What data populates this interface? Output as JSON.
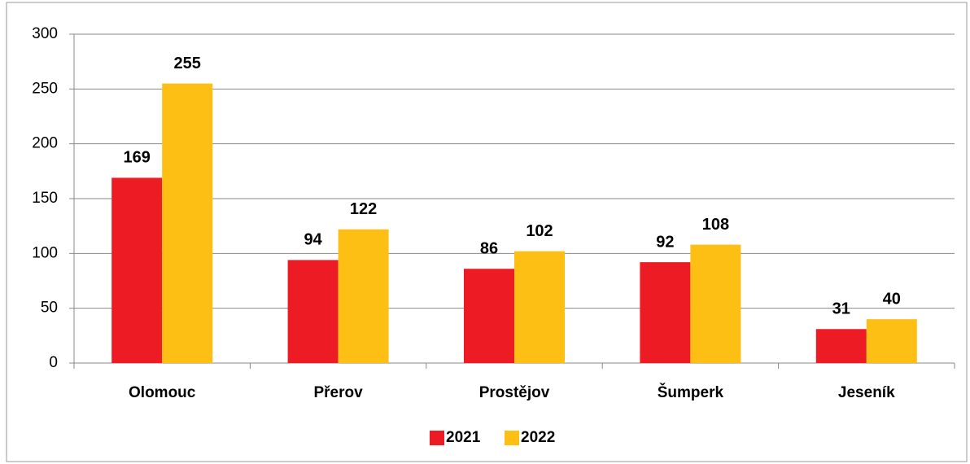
{
  "chart_data": {
    "type": "bar",
    "categories": [
      "Olomouc",
      "Přerov",
      "Prostějov",
      "Šumperk",
      "Jeseník"
    ],
    "series": [
      {
        "name": "2021",
        "color": "#ed1c24",
        "values": [
          169,
          94,
          86,
          92,
          31
        ]
      },
      {
        "name": "2022",
        "color": "#fdbf14",
        "values": [
          255,
          122,
          102,
          108,
          40
        ]
      }
    ],
    "ylim": [
      0,
      300
    ],
    "yticks": [
      0,
      50,
      100,
      150,
      200,
      250,
      300
    ],
    "grid": true,
    "legend": "bottom"
  }
}
